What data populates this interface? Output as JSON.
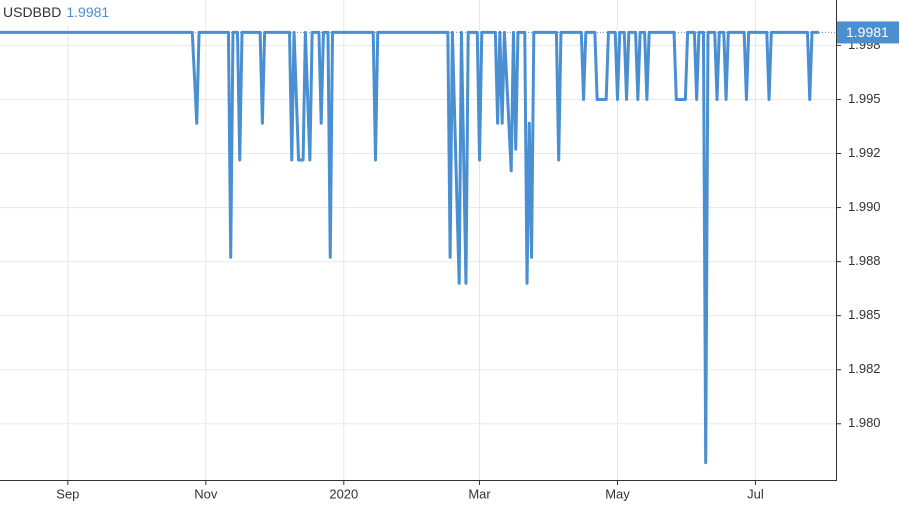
{
  "chart_data": {
    "type": "line",
    "title": "USDBBD",
    "last_value": 1.9981,
    "x": [
      0,
      85,
      87,
      88,
      101,
      102,
      103,
      105,
      106,
      107,
      115,
      116,
      117,
      128,
      129,
      130,
      132,
      134,
      135,
      137,
      138,
      141,
      142,
      143,
      145,
      146,
      147,
      165,
      166,
      167,
      198,
      199,
      200,
      203,
      204,
      206,
      207,
      211,
      212,
      213,
      219,
      220,
      221,
      222,
      223,
      226,
      227,
      228,
      229,
      232,
      233,
      234,
      235,
      236,
      246,
      247,
      248,
      257,
      258,
      259,
      263,
      264,
      268,
      269,
      272,
      273,
      274,
      276,
      277,
      278,
      281,
      282,
      283,
      285,
      286,
      287,
      298,
      299,
      303,
      304,
      307,
      308,
      309,
      311,
      312,
      313,
      316,
      317,
      318,
      320,
      321,
      322,
      329,
      330,
      331,
      339,
      340,
      341,
      357,
      358,
      359,
      362
    ],
    "series": [
      {
        "name": "USDBBD",
        "color": "#4a8fd1",
        "values": [
          1.9981,
          1.9981,
          1.9939,
          1.9981,
          1.9981,
          1.9877,
          1.9981,
          1.9981,
          1.9922,
          1.9981,
          1.9981,
          1.9939,
          1.9981,
          1.9981,
          1.9922,
          1.9981,
          1.9922,
          1.9922,
          1.9981,
          1.9922,
          1.9981,
          1.9981,
          1.9939,
          1.9981,
          1.9981,
          1.9877,
          1.9981,
          1.9981,
          1.9922,
          1.9981,
          1.9981,
          1.9877,
          1.9981,
          1.9865,
          1.9981,
          1.9865,
          1.9981,
          1.9981,
          1.9922,
          1.9981,
          1.9981,
          1.9939,
          1.9981,
          1.9939,
          1.9981,
          1.9917,
          1.9981,
          1.9927,
          1.9981,
          1.9981,
          1.9865,
          1.9939,
          1.9877,
          1.9981,
          1.9981,
          1.9922,
          1.9981,
          1.9981,
          1.995,
          1.9981,
          1.9981,
          1.995,
          1.995,
          1.9981,
          1.9981,
          1.995,
          1.9981,
          1.9981,
          1.995,
          1.9981,
          1.9981,
          1.995,
          1.9981,
          1.9981,
          1.995,
          1.9981,
          1.9981,
          1.995,
          1.995,
          1.9981,
          1.9981,
          1.995,
          1.9981,
          1.9981,
          1.9782,
          1.9981,
          1.9981,
          1.995,
          1.9981,
          1.9981,
          1.995,
          1.9981,
          1.9981,
          1.995,
          1.9981,
          1.9981,
          1.995,
          1.9981,
          1.9981,
          1.995,
          1.9981,
          1.9981
        ]
      }
    ],
    "xlim": [
      0,
      369.6
    ],
    "xticks": [
      {
        "value": 30,
        "label": "Sep"
      },
      {
        "value": 91,
        "label": "Nov"
      },
      {
        "value": 152,
        "label": "2020"
      },
      {
        "value": 212,
        "label": "Mar"
      },
      {
        "value": 273,
        "label": "May"
      },
      {
        "value": 334,
        "label": "Jul"
      }
    ],
    "ylim": [
      1.9774,
      1.9996
    ],
    "yticks": [
      {
        "value": 1.9975,
        "label": "1.998"
      },
      {
        "value": 1.995,
        "label": "1.995"
      },
      {
        "value": 1.9925,
        "label": "1.992"
      },
      {
        "value": 1.99,
        "label": "1.990"
      },
      {
        "value": 1.9875,
        "label": "1.988"
      },
      {
        "value": 1.985,
        "label": "1.985"
      },
      {
        "value": 1.9825,
        "label": "1.982"
      },
      {
        "value": 1.98,
        "label": "1.980"
      }
    ],
    "grid": true
  }
}
